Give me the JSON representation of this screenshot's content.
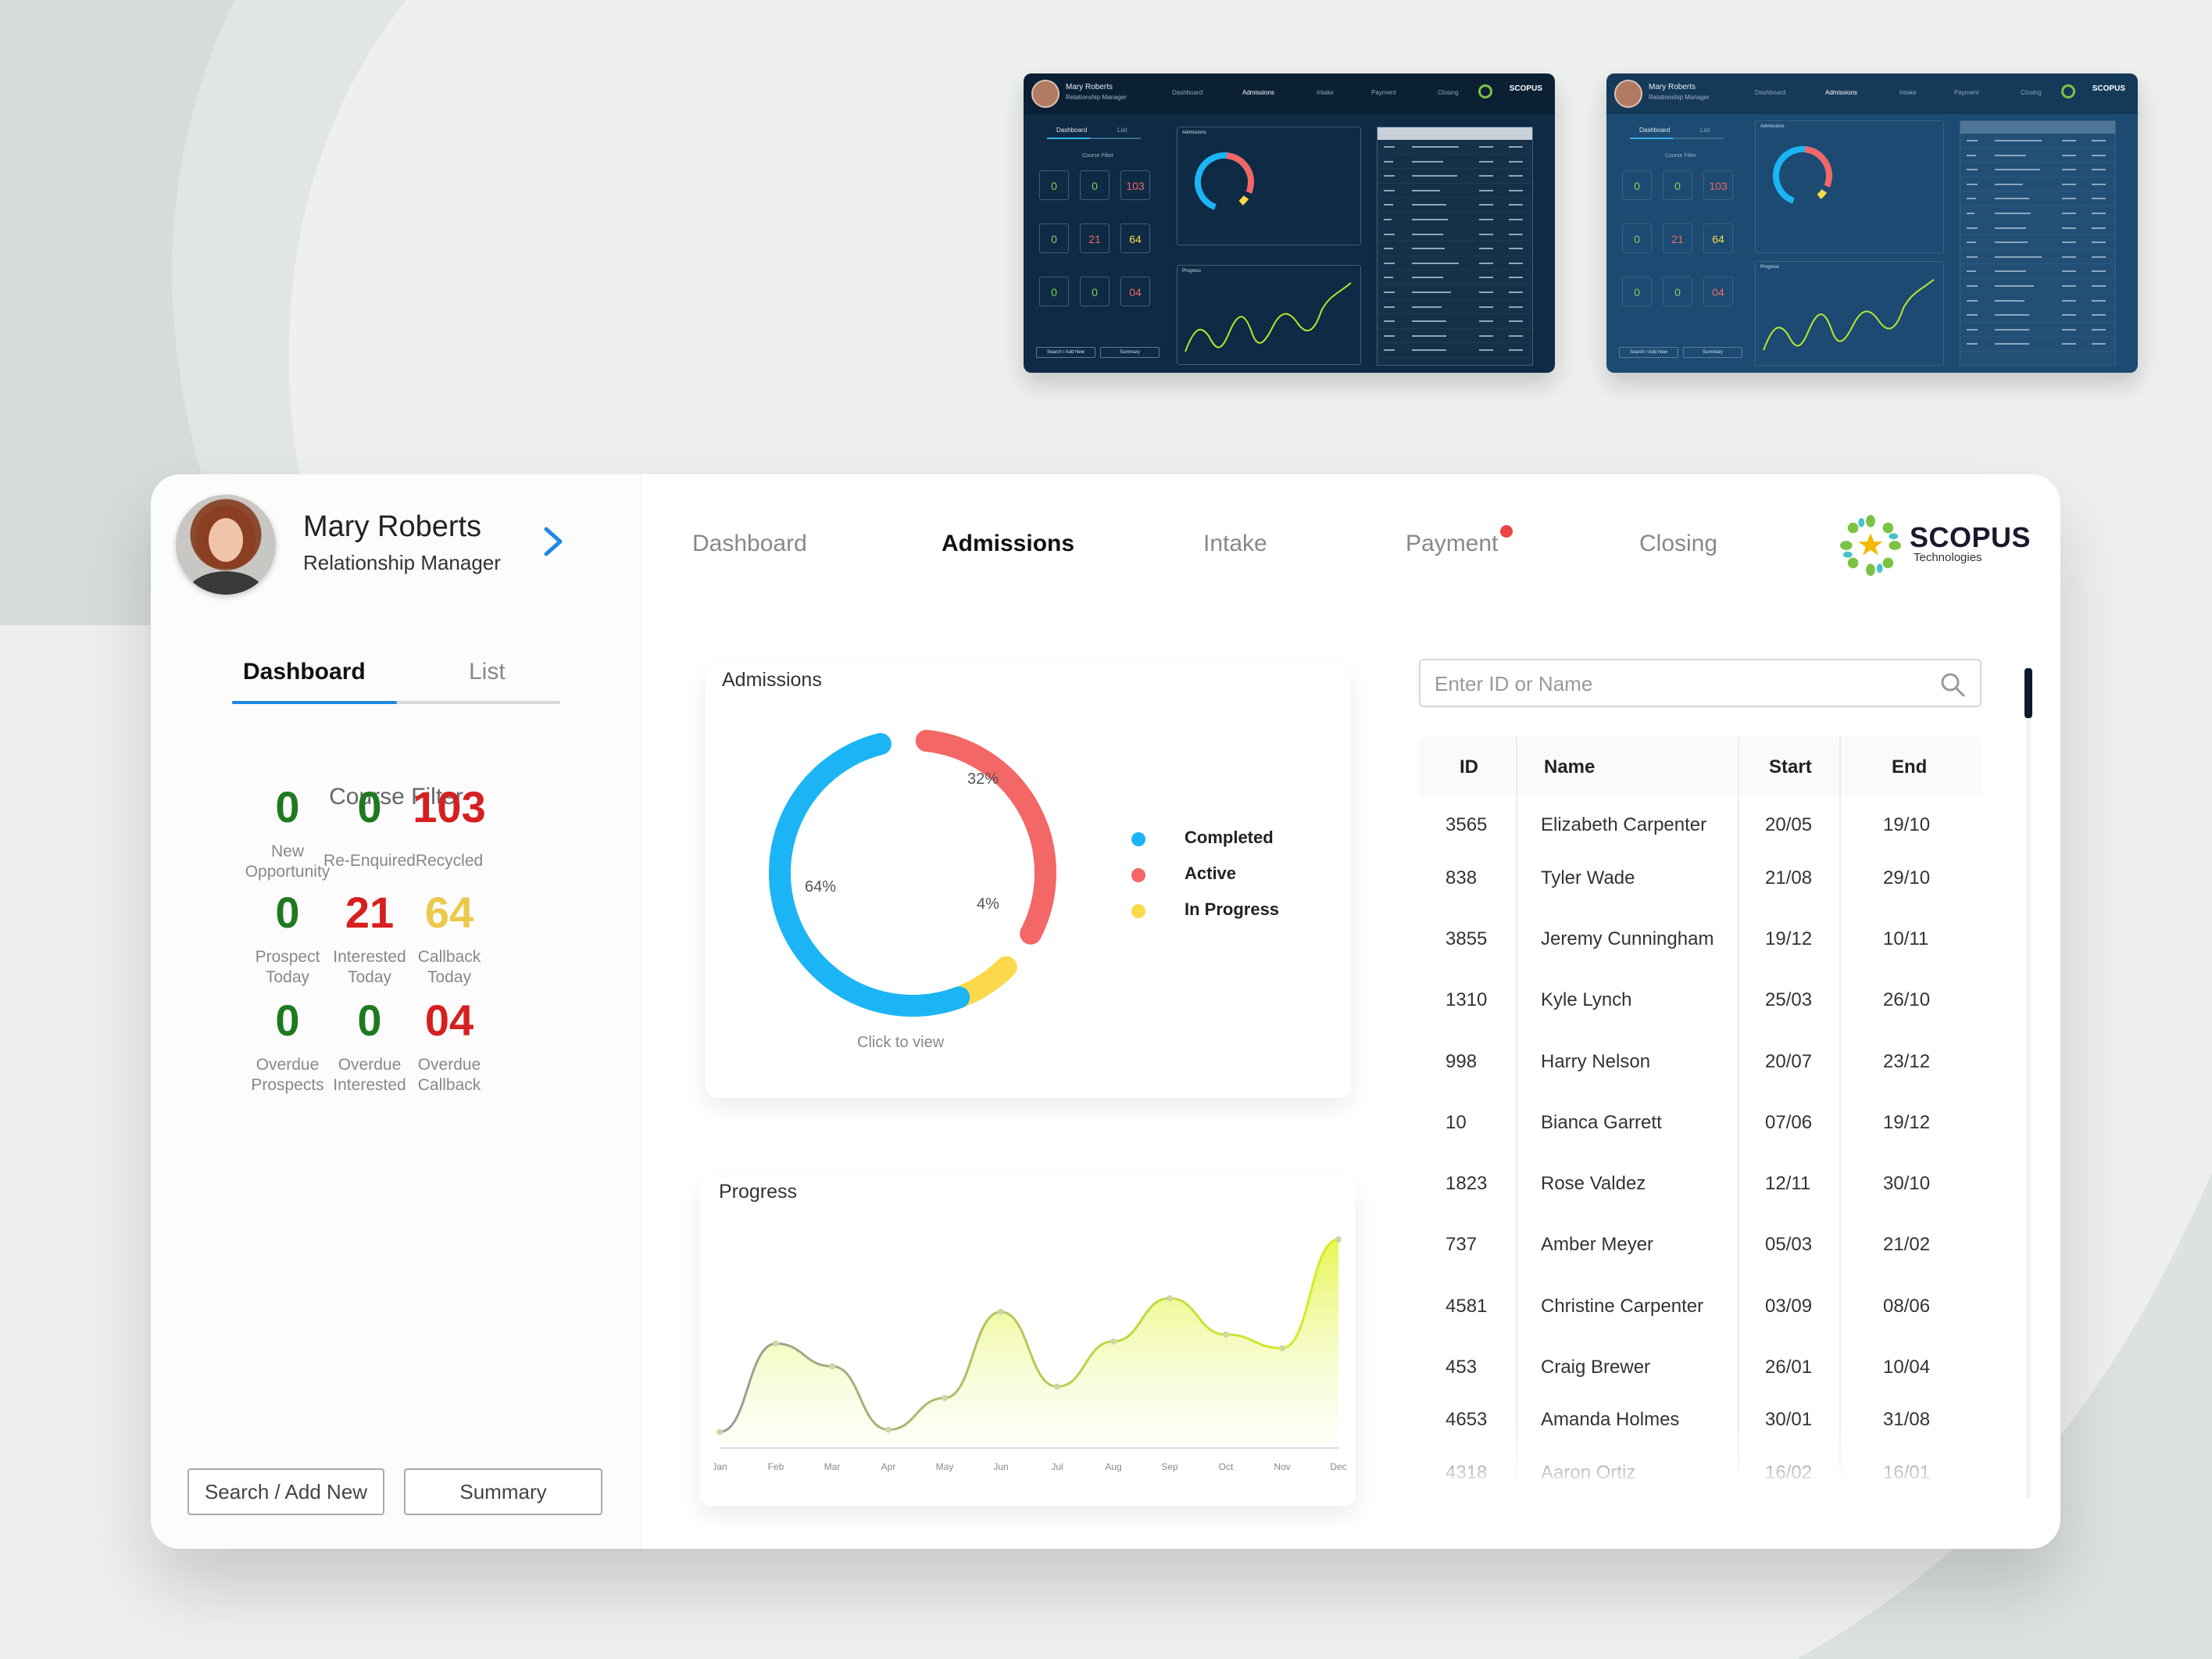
{
  "user": {
    "name": "Mary Roberts",
    "role": "Relationship Manager"
  },
  "nav": {
    "items": [
      {
        "label": "Dashboard",
        "active": false
      },
      {
        "label": "Admissions",
        "active": true
      },
      {
        "label": "Intake",
        "active": false
      },
      {
        "label": "Payment",
        "active": false,
        "notification": true
      },
      {
        "label": "Closing",
        "active": false
      }
    ]
  },
  "brand": {
    "name": "SCOPUS",
    "sub": "Technologies"
  },
  "left": {
    "tabs": [
      {
        "label": "Dashboard",
        "active": true
      },
      {
        "label": "List",
        "active": false
      }
    ],
    "course_filter": "Course Filter",
    "stats": [
      {
        "value": "0",
        "label_lines": [
          "New",
          "Opportunity"
        ],
        "color": "#1f7a1f"
      },
      {
        "value": "0",
        "label_lines": [
          "Re-Enquired"
        ],
        "color": "#1f7a1f"
      },
      {
        "value": "103",
        "label_lines": [
          "Recycled"
        ],
        "color": "#d61f1f"
      },
      {
        "value": "0",
        "label_lines": [
          "Prospect",
          "Today"
        ],
        "color": "#1f7a1f"
      },
      {
        "value": "21",
        "label_lines": [
          "Interested",
          "Today"
        ],
        "color": "#d61f1f"
      },
      {
        "value": "64",
        "label_lines": [
          "Callback",
          "Today"
        ],
        "color": "#ecc94b"
      },
      {
        "value": "0",
        "label_lines": [
          "Overdue",
          "Prospects"
        ],
        "color": "#1f7a1f"
      },
      {
        "value": "0",
        "label_lines": [
          "Overdue",
          "Interested"
        ],
        "color": "#1f7a1f"
      },
      {
        "value": "04",
        "label_lines": [
          "Overdue",
          "Callback"
        ],
        "color": "#d61f1f"
      }
    ],
    "buttons": {
      "search_add": "Search / Add New",
      "summary": "Summary"
    }
  },
  "admissions": {
    "title": "Admissions",
    "click_hint": "Click to view",
    "segments": [
      {
        "name": "Completed",
        "label": "64%",
        "value": 64,
        "color": "#1bb5f5"
      },
      {
        "name": "Active",
        "label": "32%",
        "value": 32,
        "color": "#f36767"
      },
      {
        "name": "In Progress",
        "label": "4%",
        "value": 4,
        "color": "#fcd94a"
      }
    ]
  },
  "progress": {
    "title": "Progress",
    "months": [
      "Jan",
      "Feb",
      "Mar",
      "Apr",
      "May",
      "Jun",
      "Jul",
      "Aug",
      "Sep",
      "Oct",
      "Nov",
      "Dec"
    ]
  },
  "chart_data": {
    "type": "area",
    "title": "Progress",
    "x": [
      "Jan",
      "Feb",
      "Mar",
      "Apr",
      "May",
      "Jun",
      "Jul",
      "Aug",
      "Sep",
      "Oct",
      "Nov",
      "Dec"
    ],
    "values": [
      5,
      44,
      34,
      6,
      20,
      58,
      25,
      45,
      64,
      48,
      42,
      90
    ],
    "ylim": [
      0,
      100
    ],
    "grid": false
  },
  "search": {
    "placeholder": "Enter ID or Name"
  },
  "table": {
    "headers": {
      "id": "ID",
      "name": "Name",
      "start": "Start",
      "end": "End"
    },
    "rows": [
      {
        "id": "3565",
        "name": "Elizabeth Carpenter",
        "start": "20/05",
        "end": "19/10"
      },
      {
        "id": "838",
        "name": "Tyler Wade",
        "start": "21/08",
        "end": "29/10"
      },
      {
        "id": "3855",
        "name": "Jeremy Cunningham",
        "start": "19/12",
        "end": "10/11"
      },
      {
        "id": "1310",
        "name": "Kyle Lynch",
        "start": "25/03",
        "end": "26/10"
      },
      {
        "id": "998",
        "name": "Harry Nelson",
        "start": "20/07",
        "end": "23/12"
      },
      {
        "id": "10",
        "name": "Bianca Garrett",
        "start": "07/06",
        "end": "19/12"
      },
      {
        "id": "1823",
        "name": "Rose Valdez",
        "start": "12/11",
        "end": "30/10"
      },
      {
        "id": "737",
        "name": "Amber Meyer",
        "start": "05/03",
        "end": "21/02"
      },
      {
        "id": "4581",
        "name": "Christine Carpenter",
        "start": "03/09",
        "end": "08/06"
      },
      {
        "id": "453",
        "name": "Craig Brewer",
        "start": "26/01",
        "end": "10/04"
      },
      {
        "id": "4653",
        "name": "Amanda Holmes",
        "start": "30/01",
        "end": "31/08"
      },
      {
        "id": "4318",
        "name": "Aaron Ortiz",
        "start": "16/02",
        "end": "16/01"
      }
    ]
  },
  "thumbnails": {
    "user_name": "Mary Roberts",
    "user_role": "Relationship Manager",
    "nav": [
      "Dashboard",
      "Admissions",
      "Intake",
      "Payment",
      "Closing"
    ],
    "brand": "SCOPUS",
    "tabs": [
      "Dashboard",
      "List"
    ],
    "course_filter": "Course Filter",
    "stats": [
      "0",
      "0",
      "103",
      "0",
      "21",
      "64",
      "0",
      "0",
      "04"
    ],
    "buttons": [
      "Search / Add New",
      "Summary"
    ],
    "admissions": "Admissions",
    "progress": "Progress"
  }
}
